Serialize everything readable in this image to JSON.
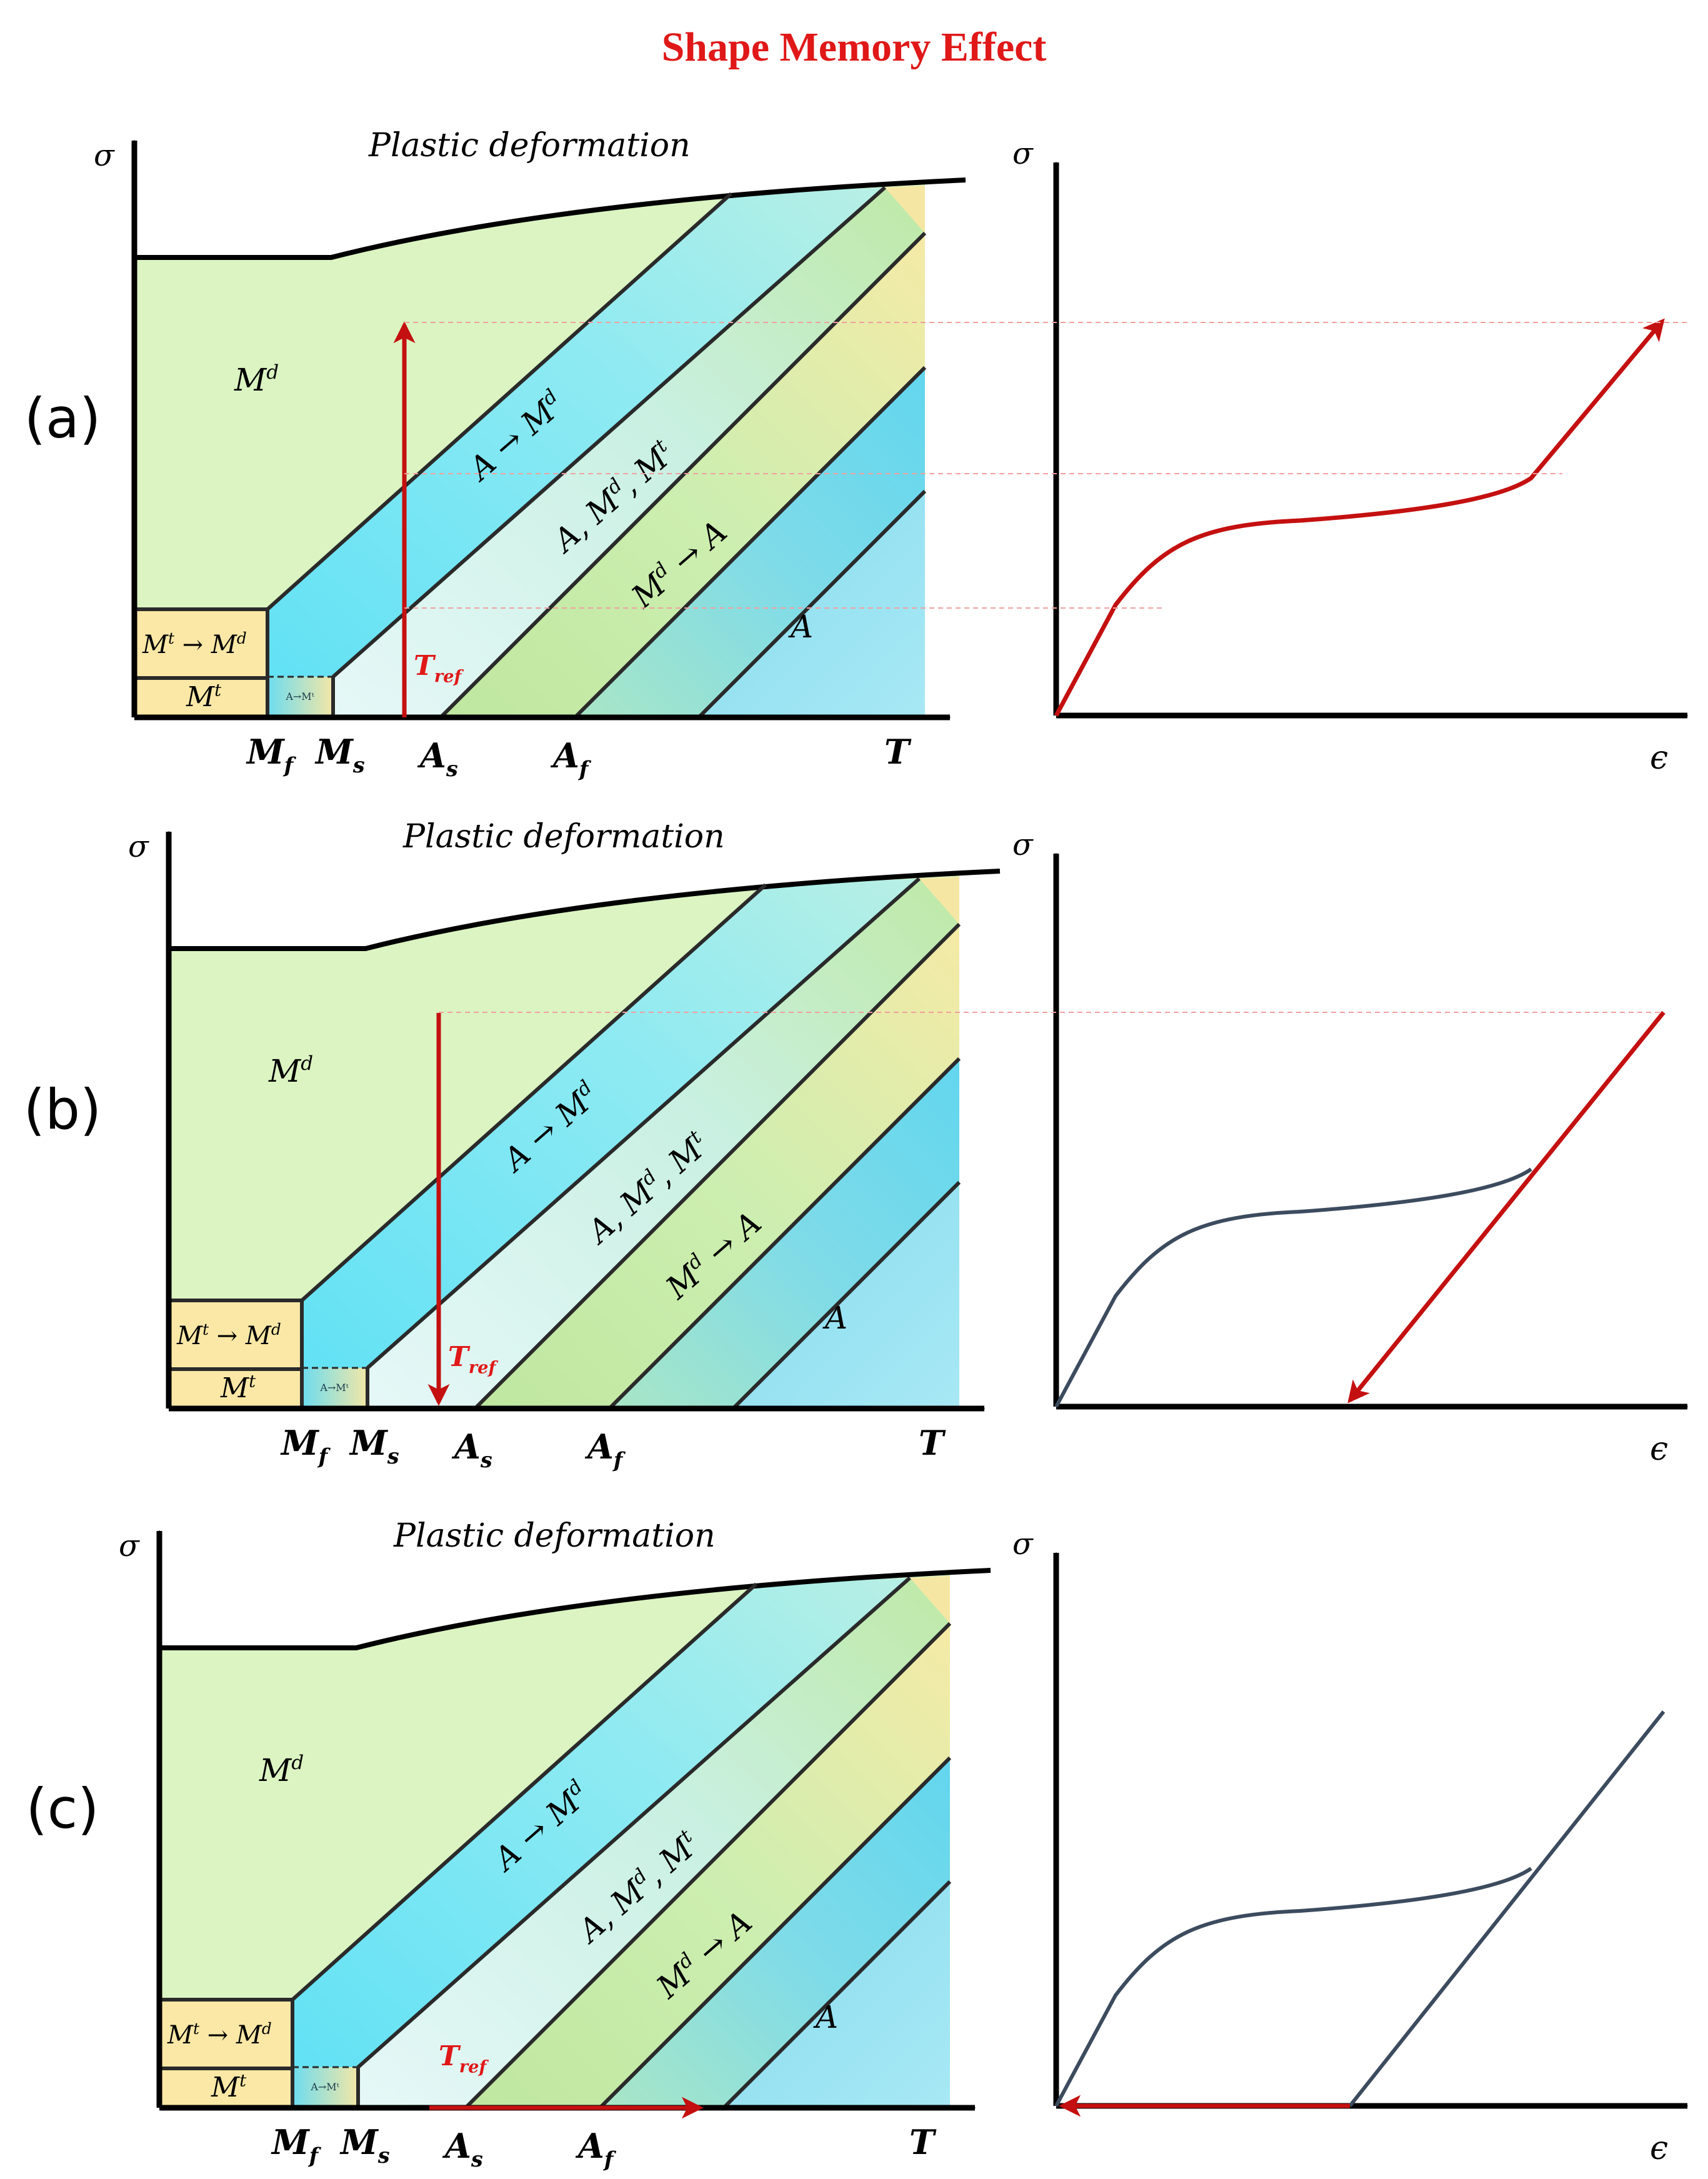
{
  "title": "Shape Memory Effect",
  "colors": {
    "title": "#e01818",
    "red": "#c41010",
    "redLabel": "#e01818",
    "axis": "#000000",
    "boundary": "#2a2a2a",
    "curveGray": "#3c4b5e",
    "md": "#dbf4c2",
    "mt": "#fbe8a6",
    "cyan": "#7ee3f2",
    "lightCyan": "#dff6f6",
    "green": "#c6eca2",
    "yellow": "#f7e9a6",
    "austenite": "#a3e6f2",
    "dashRef": "#f0a0a0"
  },
  "phase": {
    "sigma": "σ",
    "t_axis": "T",
    "plastic": "Plastic deformation",
    "md": "M",
    "md_sup": "d",
    "a_to_md": "A → M",
    "a_to_md_sup": "d",
    "a_md_mt": "A, M",
    "a_md_mt_sup1": "d",
    "a_md_mt_mid": ", M",
    "a_md_mt_sup2": "t",
    "md_to_a_pre": "M",
    "md_to_a_sup": "d",
    "md_to_a_post": " → A",
    "austenite": "A",
    "mt": "M",
    "mt_sup": "t",
    "mt_to_md_pre": "M",
    "mt_to_md_sup1": "t",
    "mt_to_md_mid": " → M",
    "mt_to_md_sup2": "d",
    "small_a_to_mt": "A→Mᵗ",
    "mf": "M",
    "mf_sub": "f",
    "ms": "M",
    "ms_sub": "s",
    "as": "A",
    "as_sub": "s",
    "af": "A",
    "af_sub": "f",
    "tref": "T",
    "tref_sub": "ref"
  },
  "strain": {
    "sigma": "σ",
    "epsilon": "ϵ"
  },
  "panels": [
    {
      "label": "(a)",
      "tref_arrow": "up",
      "strain_path": "loading"
    },
    {
      "label": "(b)",
      "tref_arrow": "down",
      "strain_path": "unloading"
    },
    {
      "label": "(c)",
      "tref_arrow": "heating-right",
      "strain_path": "recovery"
    }
  ]
}
